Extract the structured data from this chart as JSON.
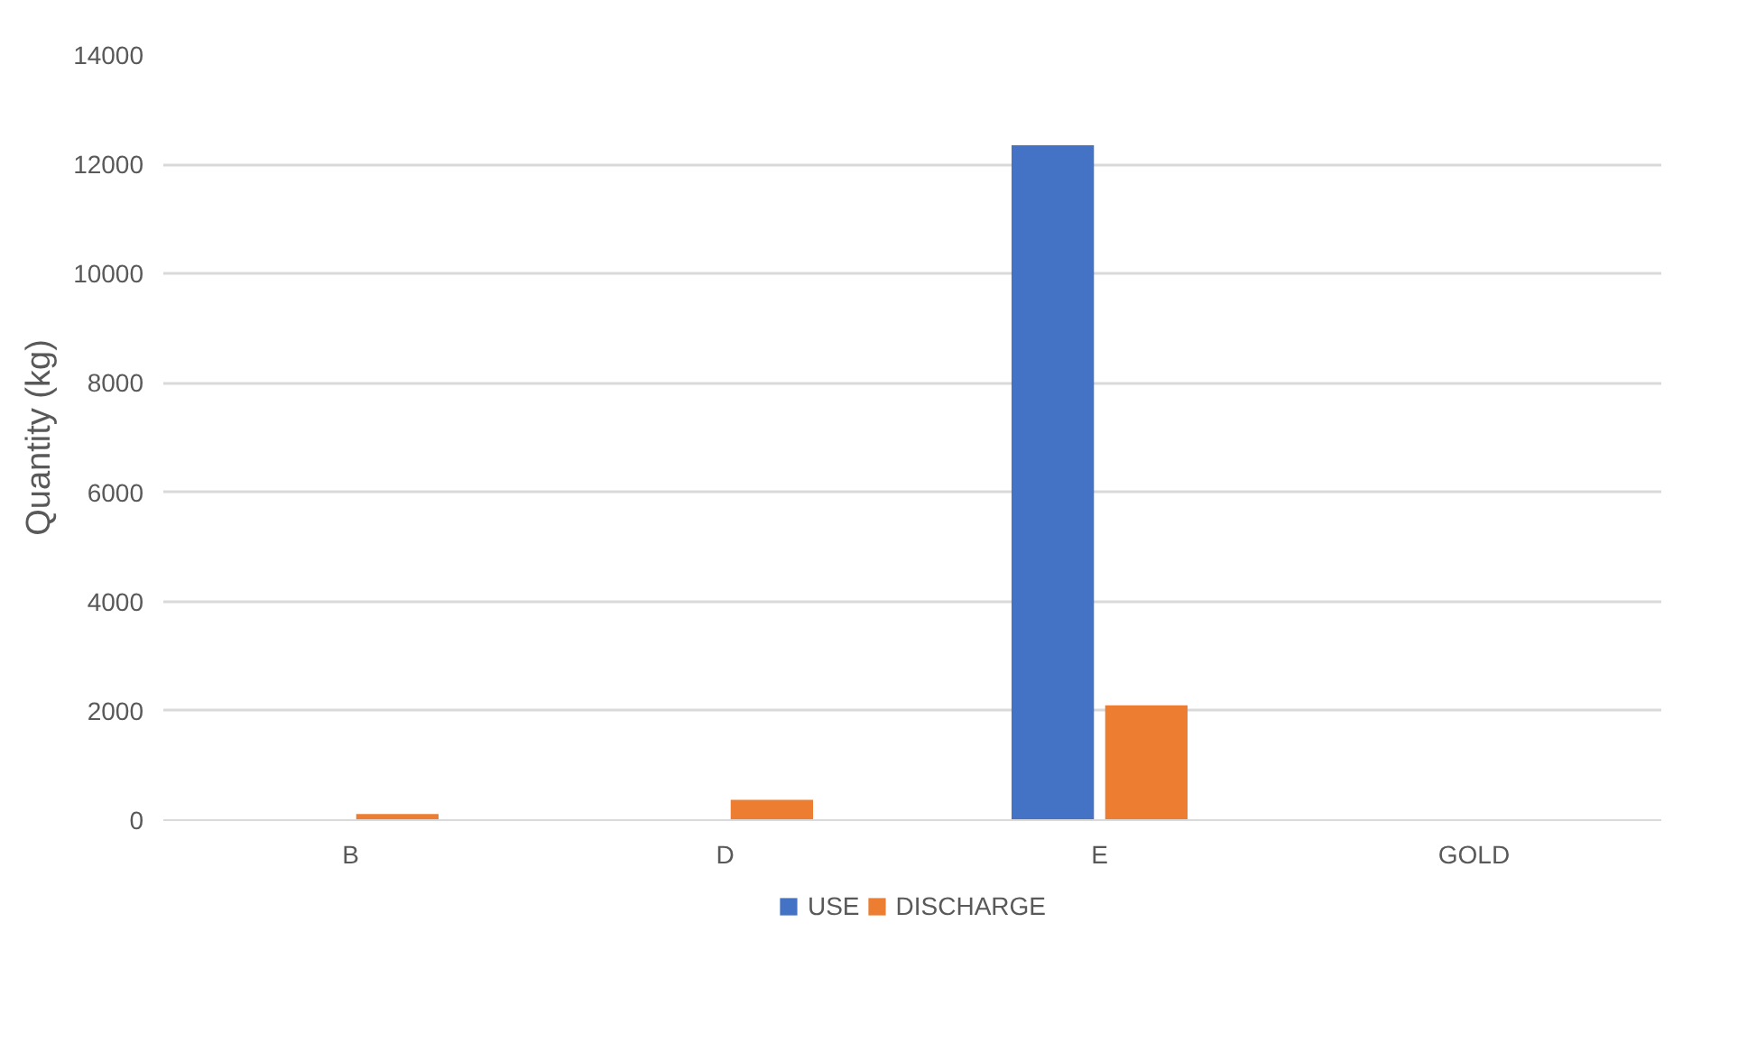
{
  "chart_data": {
    "type": "bar",
    "ylabel": "Quantity (kg)",
    "categories": [
      "B",
      "D",
      "E",
      "GOLD"
    ],
    "series": [
      {
        "name": "USE",
        "color": "#4472c4",
        "values": [
          0,
          0,
          12350,
          0
        ]
      },
      {
        "name": "DISCHARGE",
        "color": "#ed7d31",
        "values": [
          110,
          370,
          2100,
          0
        ]
      }
    ],
    "ylim": [
      0,
      14000
    ],
    "yticks": [
      0,
      2000,
      4000,
      6000,
      8000,
      10000,
      12000,
      14000
    ],
    "grid": "y",
    "legend": "bottom"
  }
}
